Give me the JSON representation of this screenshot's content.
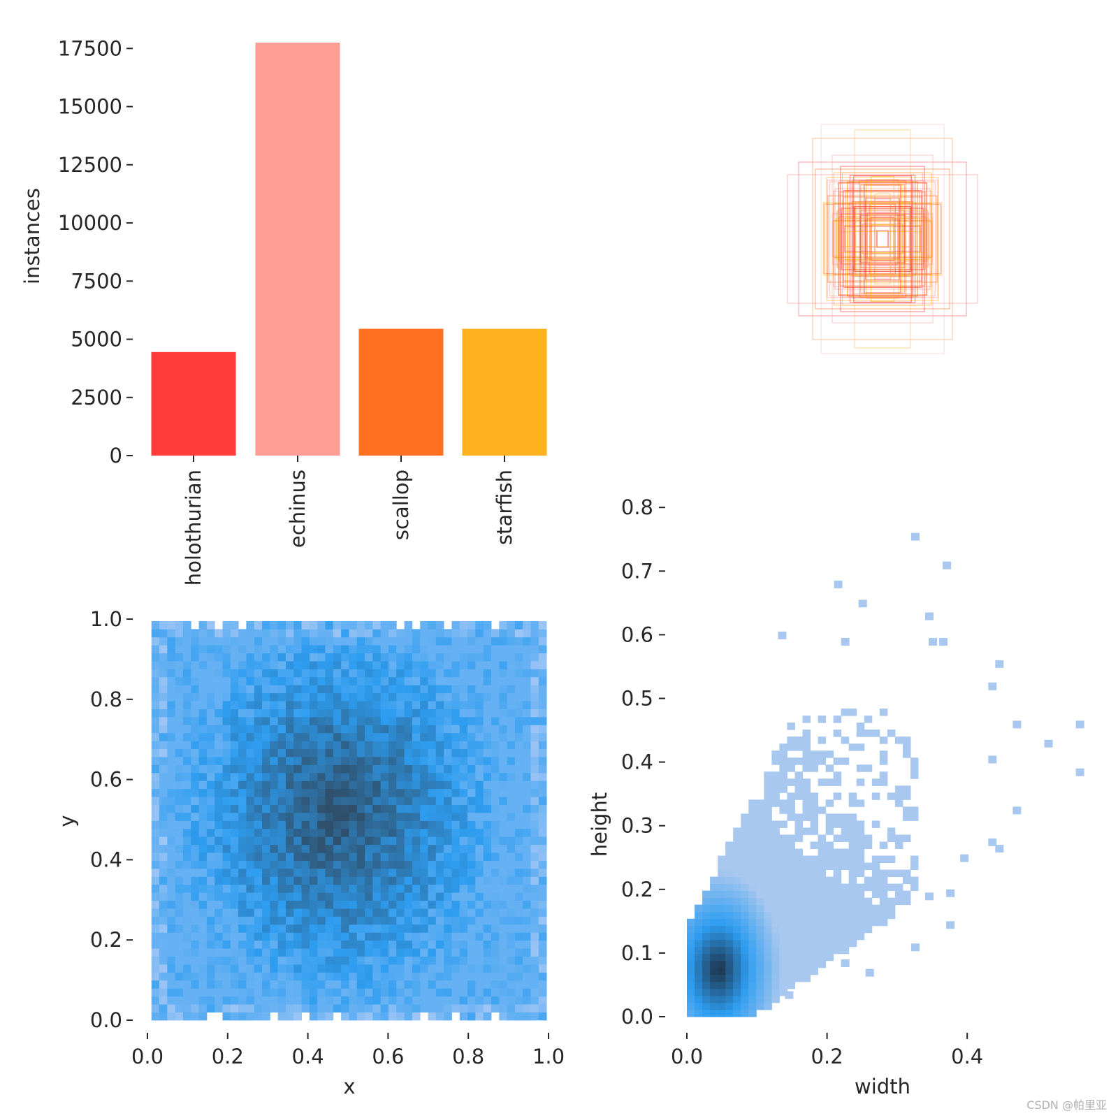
{
  "watermark": "CSDN @帕里亚",
  "colors": {
    "holothurian": "#ff3b3b",
    "echinus": "#ff9d97",
    "scallop": "#ff7020",
    "starfish": "#ffb21d",
    "xy_light": "#9ec5f5",
    "xy_mid": "#2e9df0",
    "xy_dark": "#2f4f6a",
    "wh_light": "#a9c8ef",
    "wh_dark": "#1c3045",
    "axis": "#262626"
  },
  "chart_data": [
    {
      "type": "bar",
      "ylabel": "instances",
      "categories": [
        "holothurian",
        "echinus",
        "scallop",
        "starfish"
      ],
      "values": [
        4450,
        17750,
        5450,
        5450
      ],
      "ylim": [
        0,
        17750
      ],
      "yticks": [
        0,
        2500,
        5000,
        7500,
        10000,
        12500,
        15000,
        17500
      ],
      "ytick_labels": [
        "0",
        "2500",
        "5000",
        "7500",
        "10000",
        "12500",
        "15000",
        "17500"
      ]
    },
    {
      "type": "boxes",
      "description_series": "overlaid bounding boxes centered (normalized width, height)",
      "boxes": [
        {
          "w": 0.68,
          "h": 0.46
        },
        {
          "w": 0.44,
          "h": 0.82
        },
        {
          "w": 0.5,
          "h": 0.72
        },
        {
          "w": 0.2,
          "h": 0.78
        },
        {
          "w": 0.6,
          "h": 0.55
        },
        {
          "w": 0.36,
          "h": 0.6
        },
        {
          "w": 0.48,
          "h": 0.5
        },
        {
          "w": 0.4,
          "h": 0.44
        },
        {
          "w": 0.3,
          "h": 0.52
        },
        {
          "w": 0.34,
          "h": 0.36
        },
        {
          "w": 0.28,
          "h": 0.3
        },
        {
          "w": 0.24,
          "h": 0.26
        },
        {
          "w": 0.2,
          "h": 0.22
        },
        {
          "w": 0.16,
          "h": 0.18
        },
        {
          "w": 0.12,
          "h": 0.14
        },
        {
          "w": 0.08,
          "h": 0.1
        },
        {
          "w": 0.04,
          "h": 0.06
        }
      ]
    },
    {
      "type": "heatmap",
      "xlabel": "x",
      "ylabel": "y",
      "xlim": [
        0.0,
        1.0
      ],
      "ylim": [
        0.0,
        1.0
      ],
      "xticks": [
        0.0,
        0.2,
        0.4,
        0.6,
        0.8,
        1.0
      ],
      "xtick_labels": [
        "0.0",
        "0.2",
        "0.4",
        "0.6",
        "0.8",
        "1.0"
      ],
      "yticks": [
        0.0,
        0.2,
        0.4,
        0.6,
        0.8,
        1.0
      ],
      "ytick_labels": [
        "0.0",
        "0.2",
        "0.4",
        "0.6",
        "0.8",
        "1.0"
      ],
      "bins": 50,
      "extent_x": [
        0.01,
        0.995
      ],
      "extent_y": [
        0.0,
        0.995
      ]
    },
    {
      "type": "heatmap",
      "xlabel": "width",
      "ylabel": "height",
      "xlim": [
        0.0,
        0.56
      ],
      "ylim": [
        0.0,
        0.8
      ],
      "xticks": [
        0.0,
        0.2,
        0.4
      ],
      "xtick_labels": [
        "0.0",
        "0.2",
        "0.4"
      ],
      "yticks": [
        0.0,
        0.1,
        0.2,
        0.3,
        0.4,
        0.5,
        0.6,
        0.7,
        0.8
      ],
      "ytick_labels": [
        "0.0",
        "0.1",
        "0.2",
        "0.3",
        "0.4",
        "0.5",
        "0.6",
        "0.7",
        "0.8"
      ],
      "peak": {
        "width": 0.045,
        "height": 0.075
      },
      "outliers": [
        {
          "x": 0.32,
          "y": 0.76
        },
        {
          "x": 0.365,
          "y": 0.715
        },
        {
          "x": 0.21,
          "y": 0.685
        },
        {
          "x": 0.245,
          "y": 0.655
        },
        {
          "x": 0.34,
          "y": 0.635
        },
        {
          "x": 0.13,
          "y": 0.605
        },
        {
          "x": 0.22,
          "y": 0.595
        },
        {
          "x": 0.345,
          "y": 0.595
        },
        {
          "x": 0.36,
          "y": 0.595
        },
        {
          "x": 0.44,
          "y": 0.56
        },
        {
          "x": 0.43,
          "y": 0.525
        },
        {
          "x": 0.465,
          "y": 0.465
        },
        {
          "x": 0.555,
          "y": 0.465
        },
        {
          "x": 0.51,
          "y": 0.435
        },
        {
          "x": 0.555,
          "y": 0.39
        },
        {
          "x": 0.43,
          "y": 0.41
        },
        {
          "x": 0.465,
          "y": 0.33
        },
        {
          "x": 0.43,
          "y": 0.28
        },
        {
          "x": 0.44,
          "y": 0.27
        },
        {
          "x": 0.39,
          "y": 0.255
        },
        {
          "x": 0.37,
          "y": 0.2
        },
        {
          "x": 0.34,
          "y": 0.195
        },
        {
          "x": 0.37,
          "y": 0.15
        },
        {
          "x": 0.32,
          "y": 0.115
        },
        {
          "x": 0.255,
          "y": 0.075
        },
        {
          "x": 0.22,
          "y": 0.09
        },
        {
          "x": 0.14,
          "y": 0.04
        }
      ]
    }
  ]
}
